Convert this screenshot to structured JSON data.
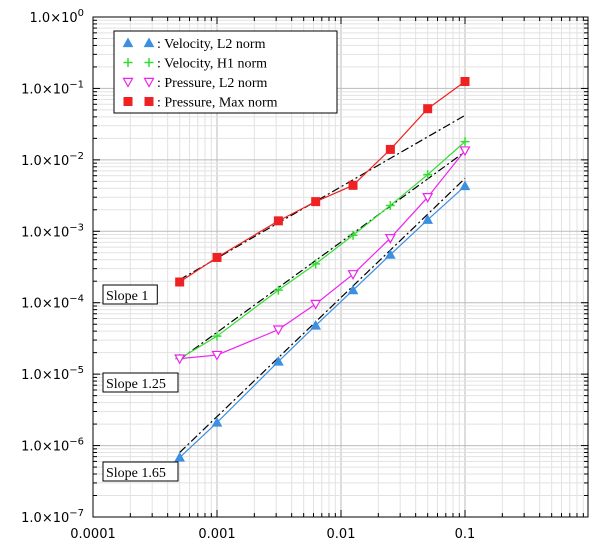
{
  "chart_data": {
    "type": "line",
    "scale": "log-log",
    "xlim": [
      0.0001,
      1
    ],
    "ylim": [
      1e-07,
      1
    ],
    "grid": true,
    "legend_placement": "top-left",
    "x_ticks": [
      {
        "value": 0.0001,
        "label": "0.0001"
      },
      {
        "value": 0.001,
        "label": "0.001"
      },
      {
        "value": 0.01,
        "label": "0.01"
      },
      {
        "value": 0.1,
        "label": "0.1"
      }
    ],
    "y_ticks": [
      {
        "value": 1e-07,
        "label_base": "1.0×10",
        "label_exp": "−7"
      },
      {
        "value": 1e-06,
        "label_base": "1.0×10",
        "label_exp": "−6"
      },
      {
        "value": 1e-05,
        "label_base": "1.0×10",
        "label_exp": "−5"
      },
      {
        "value": 0.0001,
        "label_base": "1.0×10",
        "label_exp": "−4"
      },
      {
        "value": 0.001,
        "label_base": "1.0×10",
        "label_exp": "−3"
      },
      {
        "value": 0.01,
        "label_base": "1.0×10",
        "label_exp": "−2"
      },
      {
        "value": 0.1,
        "label_base": "1.0×10",
        "label_exp": "−1"
      },
      {
        "value": 1,
        "label_base": "1.0×10",
        "label_exp": "0"
      }
    ],
    "series": [
      {
        "name": ": Velocity, L2 norm",
        "color": "#3d8fe0",
        "marker": "triangle-up",
        "x": [
          0.0005,
          0.001,
          0.003125,
          0.00625,
          0.0125,
          0.025,
          0.05,
          0.1
        ],
        "y": [
          6.8e-07,
          2.1e-06,
          1.5e-05,
          4.8e-05,
          0.00015,
          0.00047,
          0.00145,
          0.0043
        ]
      },
      {
        "name": ": Velocity, H1 norm",
        "color": "#33dd33",
        "marker": "plus",
        "x": [
          0.0005,
          0.001,
          0.003125,
          0.00625,
          0.0125,
          0.025,
          0.05,
          0.1
        ],
        "y": [
          1.65e-05,
          3.4e-05,
          0.00015,
          0.00035,
          0.00088,
          0.0023,
          0.0062,
          0.018
        ]
      },
      {
        "name": ": Pressure, L2 norm",
        "color": "#ee22ee",
        "marker": "triangle-down",
        "x": [
          0.0005,
          0.001,
          0.003125,
          0.00625,
          0.0125,
          0.025,
          0.05,
          0.1
        ],
        "y": [
          1.65e-05,
          1.85e-05,
          4.2e-05,
          9.6e-05,
          0.00025,
          0.0008,
          0.003,
          0.0135
        ]
      },
      {
        "name": ": Pressure, Max norm",
        "color": "#ee2222",
        "marker": "square",
        "x": [
          0.0005,
          0.001,
          0.003125,
          0.00625,
          0.0125,
          0.025,
          0.05,
          0.1
        ],
        "y": [
          0.000195,
          0.00043,
          0.0014,
          0.0026,
          0.0044,
          0.014,
          0.052,
          0.125
        ]
      }
    ],
    "reference_lines": [
      {
        "label": "Slope 1",
        "slope": 1,
        "x": [
          0.0005,
          0.1
        ],
        "y": [
          0.00021,
          0.042
        ]
      },
      {
        "label": "Slope 1.25",
        "slope": 1.25,
        "x": [
          0.0005,
          0.1
        ],
        "y": [
          1.6e-05,
          0.013
        ]
      },
      {
        "label": "Slope 1.65",
        "slope": 1.65,
        "x": [
          0.0005,
          0.1
        ],
        "y": [
          8e-07,
          0.0055
        ]
      }
    ]
  }
}
